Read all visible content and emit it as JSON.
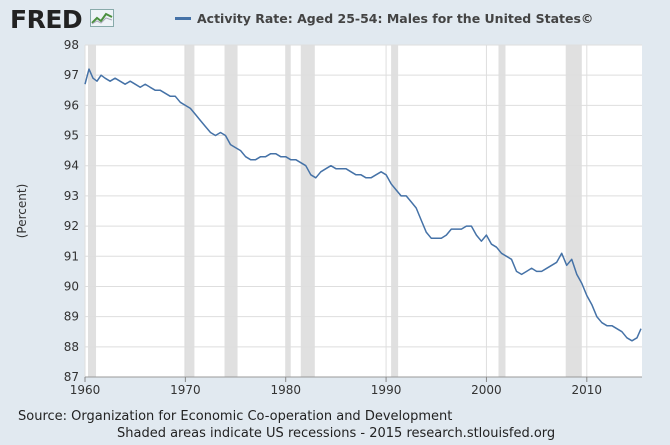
{
  "logo": {
    "text": "FRED",
    "icon": "line-graph-icon"
  },
  "legend": {
    "label": "Activity Rate: Aged 25-54: Males for the United States©",
    "color": "#4572a7"
  },
  "footer": {
    "source": "Source: Organization for Economic Co-operation and Development",
    "note": "Shaded areas indicate US recessions - 2015 research.stlouisfed.org"
  },
  "chart_data": {
    "type": "line",
    "title": "",
    "xlabel": "",
    "ylabel": "(Percent)",
    "xlim": [
      1960,
      2015.5
    ],
    "ylim": [
      87,
      98
    ],
    "x_ticks": [
      1960,
      1970,
      1980,
      1990,
      2000,
      2010
    ],
    "y_ticks": [
      87,
      88,
      89,
      90,
      91,
      92,
      93,
      94,
      95,
      96,
      97,
      98
    ],
    "grid": true,
    "legend_position": "top",
    "line_color": "#4572a7",
    "recession_color": "#e0e0e0",
    "recessions": [
      [
        1960.3,
        1961.1
      ],
      [
        1969.9,
        1970.9
      ],
      [
        1973.9,
        1975.2
      ],
      [
        1980.0,
        1980.5
      ],
      [
        1981.5,
        1982.9
      ],
      [
        1990.5,
        1991.2
      ],
      [
        2001.2,
        2001.9
      ],
      [
        2007.9,
        2009.5
      ]
    ],
    "series": [
      {
        "values": [
          [
            1960.0,
            96.7
          ],
          [
            1960.4,
            97.2
          ],
          [
            1960.8,
            96.9
          ],
          [
            1961.2,
            96.8
          ],
          [
            1961.6,
            97.0
          ],
          [
            1962.0,
            96.9
          ],
          [
            1962.5,
            96.8
          ],
          [
            1963.0,
            96.9
          ],
          [
            1963.5,
            96.8
          ],
          [
            1964.0,
            96.7
          ],
          [
            1964.5,
            96.8
          ],
          [
            1965.0,
            96.7
          ],
          [
            1965.5,
            96.6
          ],
          [
            1966.0,
            96.7
          ],
          [
            1966.5,
            96.6
          ],
          [
            1967.0,
            96.5
          ],
          [
            1967.5,
            96.5
          ],
          [
            1968.0,
            96.4
          ],
          [
            1968.5,
            96.3
          ],
          [
            1969.0,
            96.3
          ],
          [
            1969.5,
            96.1
          ],
          [
            1970.0,
            96.0
          ],
          [
            1970.5,
            95.9
          ],
          [
            1971.0,
            95.7
          ],
          [
            1971.5,
            95.5
          ],
          [
            1972.0,
            95.3
          ],
          [
            1972.5,
            95.1
          ],
          [
            1973.0,
            95.0
          ],
          [
            1973.5,
            95.1
          ],
          [
            1974.0,
            95.0
          ],
          [
            1974.5,
            94.7
          ],
          [
            1975.0,
            94.6
          ],
          [
            1975.5,
            94.5
          ],
          [
            1976.0,
            94.3
          ],
          [
            1976.5,
            94.2
          ],
          [
            1977.0,
            94.2
          ],
          [
            1977.5,
            94.3
          ],
          [
            1978.0,
            94.3
          ],
          [
            1978.5,
            94.4
          ],
          [
            1979.0,
            94.4
          ],
          [
            1979.5,
            94.3
          ],
          [
            1980.0,
            94.3
          ],
          [
            1980.5,
            94.2
          ],
          [
            1981.0,
            94.2
          ],
          [
            1981.5,
            94.1
          ],
          [
            1982.0,
            94.0
          ],
          [
            1982.5,
            93.7
          ],
          [
            1983.0,
            93.6
          ],
          [
            1983.5,
            93.8
          ],
          [
            1984.0,
            93.9
          ],
          [
            1984.5,
            94.0
          ],
          [
            1985.0,
            93.9
          ],
          [
            1985.5,
            93.9
          ],
          [
            1986.0,
            93.9
          ],
          [
            1986.5,
            93.8
          ],
          [
            1987.0,
            93.7
          ],
          [
            1987.5,
            93.7
          ],
          [
            1988.0,
            93.6
          ],
          [
            1988.5,
            93.6
          ],
          [
            1989.0,
            93.7
          ],
          [
            1989.5,
            93.8
          ],
          [
            1990.0,
            93.7
          ],
          [
            1990.5,
            93.4
          ],
          [
            1991.0,
            93.2
          ],
          [
            1991.5,
            93.0
          ],
          [
            1992.0,
            93.0
          ],
          [
            1992.5,
            92.8
          ],
          [
            1993.0,
            92.6
          ],
          [
            1993.5,
            92.2
          ],
          [
            1994.0,
            91.8
          ],
          [
            1994.5,
            91.6
          ],
          [
            1995.0,
            91.6
          ],
          [
            1995.5,
            91.6
          ],
          [
            1996.0,
            91.7
          ],
          [
            1996.5,
            91.9
          ],
          [
            1997.0,
            91.9
          ],
          [
            1997.5,
            91.9
          ],
          [
            1998.0,
            92.0
          ],
          [
            1998.5,
            92.0
          ],
          [
            1999.0,
            91.7
          ],
          [
            1999.5,
            91.5
          ],
          [
            2000.0,
            91.7
          ],
          [
            2000.5,
            91.4
          ],
          [
            2001.0,
            91.3
          ],
          [
            2001.5,
            91.1
          ],
          [
            2002.0,
            91.0
          ],
          [
            2002.5,
            90.9
          ],
          [
            2003.0,
            90.5
          ],
          [
            2003.5,
            90.4
          ],
          [
            2004.0,
            90.5
          ],
          [
            2004.5,
            90.6
          ],
          [
            2005.0,
            90.5
          ],
          [
            2005.5,
            90.5
          ],
          [
            2006.0,
            90.6
          ],
          [
            2006.5,
            90.7
          ],
          [
            2007.0,
            90.8
          ],
          [
            2007.5,
            91.1
          ],
          [
            2008.0,
            90.7
          ],
          [
            2008.5,
            90.9
          ],
          [
            2009.0,
            90.4
          ],
          [
            2009.5,
            90.1
          ],
          [
            2010.0,
            89.7
          ],
          [
            2010.5,
            89.4
          ],
          [
            2011.0,
            89.0
          ],
          [
            2011.5,
            88.8
          ],
          [
            2012.0,
            88.7
          ],
          [
            2012.5,
            88.7
          ],
          [
            2013.0,
            88.6
          ],
          [
            2013.5,
            88.5
          ],
          [
            2014.0,
            88.3
          ],
          [
            2014.5,
            88.2
          ],
          [
            2015.0,
            88.3
          ],
          [
            2015.4,
            88.6
          ]
        ]
      }
    ]
  }
}
